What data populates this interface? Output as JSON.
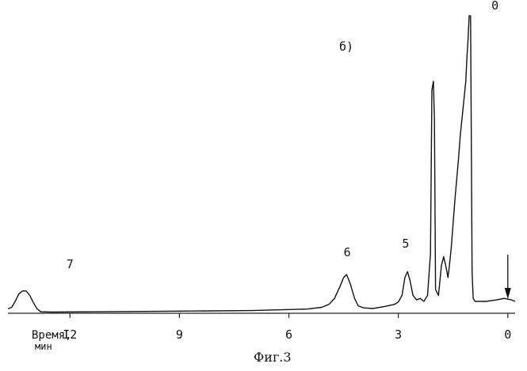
{
  "chart_data": {
    "type": "line",
    "title": "",
    "panel_label": "б)",
    "caption": "Фиг.3",
    "xlabel": "Время,",
    "xunit": "мин",
    "xlim": [
      13.7,
      -0.2
    ],
    "ylim": [
      0,
      100
    ],
    "reversed_x": true,
    "grid": false,
    "x_ticks": [
      {
        "value": 12,
        "label": "I2"
      },
      {
        "value": 9,
        "label": "9"
      },
      {
        "value": 6,
        "label": "6"
      },
      {
        "value": 3,
        "label": "3"
      },
      {
        "value": 0,
        "label": "0"
      }
    ],
    "peak_labels": [
      {
        "label": "7",
        "x": 12.0,
        "y": 13
      },
      {
        "label": "6",
        "x": 4.4,
        "y": 17
      },
      {
        "label": "5",
        "x": 2.8,
        "y": 20
      },
      {
        "label": "0",
        "x": 0.35,
        "y": 100
      }
    ],
    "injection_marker": {
      "x": 0,
      "direction": "down"
    },
    "series": [
      {
        "points": [
          [
            13.7,
            1.5
          ],
          [
            13.6,
            2
          ],
          [
            13.5,
            4
          ],
          [
            13.4,
            6.5
          ],
          [
            13.3,
            7.5
          ],
          [
            13.2,
            7.5
          ],
          [
            13.1,
            6
          ],
          [
            13.0,
            3.5
          ],
          [
            12.9,
            1.5
          ],
          [
            12.8,
            0.5
          ],
          [
            12.5,
            0.4
          ],
          [
            10,
            0.6
          ],
          [
            7,
            0.9
          ],
          [
            5.5,
            1.4
          ],
          [
            5.1,
            2
          ],
          [
            4.9,
            3
          ],
          [
            4.75,
            5
          ],
          [
            4.6,
            9
          ],
          [
            4.5,
            12
          ],
          [
            4.42,
            13
          ],
          [
            4.32,
            10
          ],
          [
            4.2,
            5
          ],
          [
            4.1,
            2.5
          ],
          [
            3.95,
            1.8
          ],
          [
            3.7,
            1.6
          ],
          [
            3.4,
            2.2
          ],
          [
            3.1,
            3
          ],
          [
            3.0,
            3.8
          ],
          [
            2.9,
            6
          ],
          [
            2.82,
            12
          ],
          [
            2.75,
            14
          ],
          [
            2.68,
            11
          ],
          [
            2.6,
            6
          ],
          [
            2.5,
            4.5
          ],
          [
            2.4,
            5
          ],
          [
            2.3,
            4
          ],
          [
            2.2,
            6
          ],
          [
            2.12,
            20
          ],
          [
            2.08,
            75
          ],
          [
            2.04,
            78
          ],
          [
            2.01,
            65
          ],
          [
            1.98,
            8
          ],
          [
            1.9,
            6
          ],
          [
            1.82,
            16
          ],
          [
            1.76,
            19
          ],
          [
            1.7,
            16
          ],
          [
            1.64,
            12
          ],
          [
            1.6,
            16
          ],
          [
            1.55,
            22
          ],
          [
            1.5,
            30
          ],
          [
            1.45,
            38
          ],
          [
            1.4,
            45
          ],
          [
            1.35,
            52
          ],
          [
            1.3,
            60
          ],
          [
            1.25,
            66
          ],
          [
            1.2,
            72
          ],
          [
            1.15,
            78
          ],
          [
            1.12,
            86
          ],
          [
            1.09,
            92
          ],
          [
            1.06,
            100
          ],
          [
            1.02,
            100
          ],
          [
            1.0,
            60
          ],
          [
            0.98,
            14
          ],
          [
            0.95,
            5
          ],
          [
            0.9,
            4
          ],
          [
            0.6,
            4
          ],
          [
            0.3,
            4.5
          ],
          [
            0.1,
            5
          ],
          [
            -0.1,
            4.5
          ],
          [
            -0.2,
            4
          ]
        ]
      }
    ]
  }
}
